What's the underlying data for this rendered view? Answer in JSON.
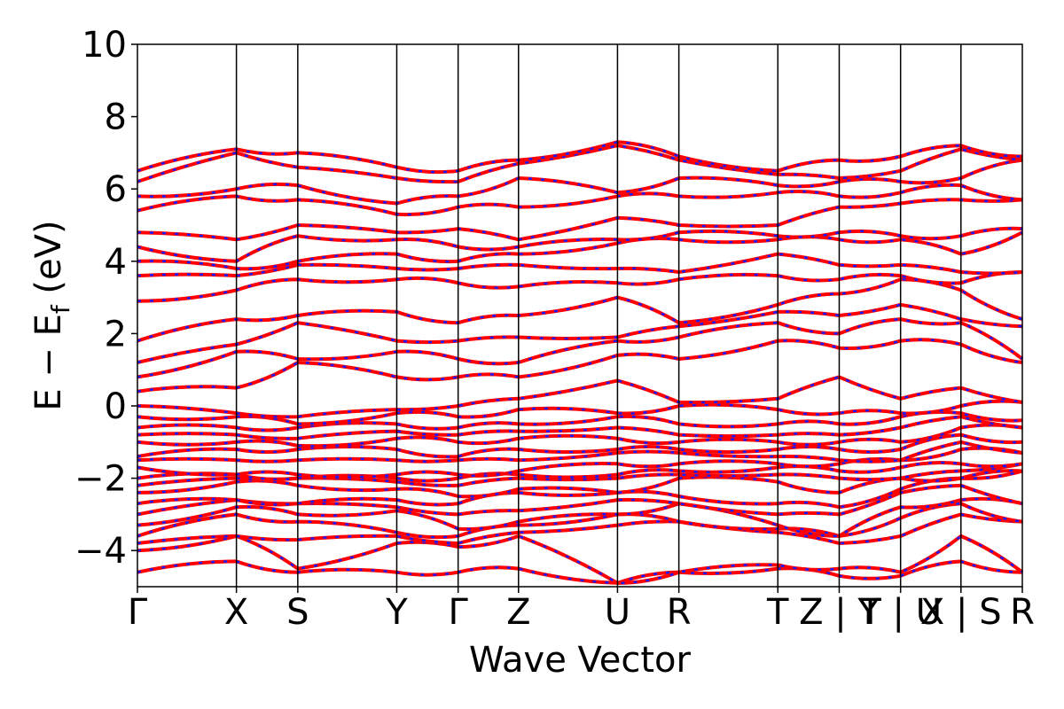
{
  "chart_data": {
    "type": "line",
    "title": "",
    "xlabel": "Wave Vector",
    "ylabel": "E − E_f (eV)",
    "ylabel_main": "E − E",
    "ylabel_sub": "f",
    "ylabel_unit": " (eV)",
    "ylim": [
      -5,
      10
    ],
    "yticks": [
      -4,
      -2,
      0,
      2,
      4,
      6,
      8,
      10
    ],
    "ytick_labels": [
      "−4",
      "−2",
      "0",
      "2",
      "4",
      "6",
      "8",
      "10"
    ],
    "grid": false,
    "legend": "none",
    "kpath": [
      {
        "label": "Γ",
        "x": 0.0
      },
      {
        "label": "X",
        "x": 1.0
      },
      {
        "label": "S",
        "x": 1.62
      },
      {
        "label": "Y",
        "x": 2.62
      },
      {
        "label": "Γ",
        "x": 3.24
      },
      {
        "label": "Z",
        "x": 3.85
      },
      {
        "label": "U",
        "x": 4.85
      },
      {
        "label": "R",
        "x": 5.47
      },
      {
        "label": "T",
        "x": 6.47
      },
      {
        "label": "Z | Y",
        "x": 7.09
      },
      {
        "label": "T | U",
        "x": 7.71
      },
      {
        "label": "X | S",
        "x": 8.32
      },
      {
        "label": "R",
        "x": 8.94
      }
    ],
    "series_colors": {
      "line": "#ff0000",
      "dashes": "#1a1aff"
    },
    "band_series_note": "",
    "bands_at_kpoints": [
      [
        -4.6,
        -4.3,
        -4.6,
        -4.6,
        -4.6,
        -4.5,
        -4.9,
        -4.6,
        -4.5,
        -4.7,
        -4.7,
        -4.3,
        -4.6
      ],
      [
        -4.0,
        -3.6,
        -4.5,
        -3.8,
        -3.9,
        -3.6,
        -4.9,
        -4.6,
        -4.4,
        -4.5,
        -4.6,
        -3.6,
        -4.6
      ],
      [
        -3.8,
        -3.6,
        -3.7,
        -3.6,
        -3.8,
        -3.5,
        -3.3,
        -3.2,
        -3.5,
        -3.8,
        -3.6,
        -3.0,
        -3.2
      ],
      [
        -3.6,
        -3.0,
        -3.2,
        -3.5,
        -3.6,
        -3.3,
        -3.0,
        -3.2,
        -3.4,
        -3.6,
        -3.1,
        -2.7,
        -3.2
      ],
      [
        -3.3,
        -2.8,
        -3.0,
        -2.9,
        -3.4,
        -3.2,
        -3.0,
        -2.7,
        -3.3,
        -3.6,
        -2.8,
        -2.6,
        -2.7
      ],
      [
        -3.0,
        -2.6,
        -2.7,
        -2.8,
        -3.0,
        -2.9,
        -2.6,
        -2.7,
        -3.0,
        -3.0,
        -2.4,
        -2.2,
        -2.7
      ],
      [
        -2.7,
        -2.6,
        -2.7,
        -2.6,
        -2.7,
        -2.4,
        -2.4,
        -2.5,
        -2.7,
        -2.8,
        -2.3,
        -2.0,
        -1.8
      ],
      [
        -2.4,
        -2.1,
        -2.2,
        -2.3,
        -2.5,
        -2.3,
        -2.4,
        -2.0,
        -2.1,
        -2.4,
        -2.0,
        -2.0,
        -1.8
      ],
      [
        -2.2,
        -2.0,
        -2.0,
        -2.1,
        -2.2,
        -2.0,
        -2.0,
        -1.9,
        -1.9,
        -2.0,
        -2.0,
        -1.8,
        -1.6
      ],
      [
        -2.0,
        -1.9,
        -2.0,
        -2.0,
        -2.0,
        -1.9,
        -1.9,
        -1.8,
        -1.7,
        -1.8,
        -1.7,
        -1.6,
        -1.6
      ],
      [
        -1.7,
        -1.9,
        -1.9,
        -1.9,
        -1.9,
        -1.8,
        -1.6,
        -1.6,
        -1.6,
        -1.6,
        -1.5,
        -1.2,
        -1.3
      ],
      [
        -1.5,
        -1.5,
        -1.5,
        -1.5,
        -1.5,
        -1.5,
        -1.3,
        -1.3,
        -1.4,
        -1.5,
        -1.5,
        -1.0,
        -1.3
      ],
      [
        -1.4,
        -1.2,
        -1.2,
        -1.2,
        -1.4,
        -1.2,
        -1.2,
        -1.2,
        -1.2,
        -1.2,
        -1.2,
        -0.8,
        -1.0
      ],
      [
        -1.0,
        -1.0,
        -1.1,
        -0.9,
        -1.0,
        -0.9,
        -0.9,
        -1.0,
        -1.0,
        -1.0,
        -1.0,
        -0.6,
        -0.6
      ],
      [
        -0.8,
        -0.8,
        -0.9,
        -0.7,
        -0.8,
        -0.7,
        -0.6,
        -0.8,
        -0.8,
        -0.8,
        -0.6,
        -0.3,
        -0.6
      ],
      [
        -0.6,
        -0.6,
        -0.6,
        -0.5,
        -0.6,
        -0.5,
        -0.3,
        -0.5,
        -0.5,
        -0.5,
        -0.3,
        -0.2,
        -0.4
      ],
      [
        -0.3,
        -0.3,
        -0.5,
        -0.2,
        -0.3,
        -0.1,
        -0.2,
        0.0,
        -0.1,
        -0.2,
        -0.2,
        0.0,
        0.1
      ],
      [
        0.0,
        -0.2,
        -0.3,
        -0.1,
        0.0,
        0.2,
        0.7,
        0.1,
        0.2,
        0.8,
        0.2,
        0.5,
        0.1
      ],
      [
        0.4,
        0.5,
        1.2,
        0.8,
        0.8,
        0.8,
        1.4,
        1.3,
        1.8,
        1.6,
        1.8,
        1.7,
        1.2
      ],
      [
        0.8,
        1.5,
        1.3,
        1.5,
        1.3,
        1.2,
        1.8,
        1.9,
        2.3,
        2.0,
        2.4,
        2.3,
        1.3
      ],
      [
        1.2,
        1.7,
        2.3,
        1.8,
        1.8,
        1.9,
        1.9,
        2.2,
        2.6,
        2.5,
        2.8,
        2.4,
        2.2
      ],
      [
        1.8,
        2.4,
        2.5,
        2.6,
        2.3,
        2.5,
        3.0,
        2.3,
        2.8,
        3.1,
        3.5,
        3.2,
        2.4
      ],
      [
        2.9,
        3.2,
        3.5,
        3.5,
        3.4,
        3.3,
        3.4,
        3.5,
        3.6,
        3.5,
        3.6,
        3.4,
        3.7
      ],
      [
        3.6,
        3.6,
        3.9,
        3.8,
        3.8,
        3.9,
        3.8,
        3.7,
        4.2,
        3.9,
        3.9,
        3.7,
        3.7
      ],
      [
        4.0,
        3.8,
        4.0,
        4.2,
        4.0,
        4.2,
        4.5,
        4.6,
        4.6,
        4.6,
        4.6,
        4.2,
        4.8
      ],
      [
        4.4,
        4.0,
        4.7,
        4.6,
        4.4,
        4.4,
        4.6,
        4.8,
        4.7,
        4.8,
        4.7,
        4.7,
        4.9
      ],
      [
        4.8,
        4.6,
        5.0,
        4.8,
        4.9,
        4.6,
        5.2,
        5.0,
        5.0,
        5.5,
        5.6,
        5.7,
        5.7
      ],
      [
        5.4,
        5.8,
        5.7,
        5.3,
        5.5,
        5.5,
        5.8,
        5.8,
        5.9,
        5.8,
        5.9,
        6.1,
        5.7
      ],
      [
        5.8,
        6.0,
        6.1,
        5.6,
        5.8,
        6.3,
        5.9,
        6.3,
        6.1,
        6.2,
        6.2,
        6.3,
        6.8
      ],
      [
        6.2,
        7.0,
        6.6,
        6.3,
        6.2,
        6.7,
        7.2,
        6.8,
        6.4,
        6.3,
        6.5,
        7.1,
        6.8
      ],
      [
        6.5,
        7.1,
        7.0,
        6.6,
        6.5,
        6.8,
        7.3,
        6.9,
        6.5,
        6.8,
        6.9,
        7.2,
        6.9
      ]
    ]
  }
}
